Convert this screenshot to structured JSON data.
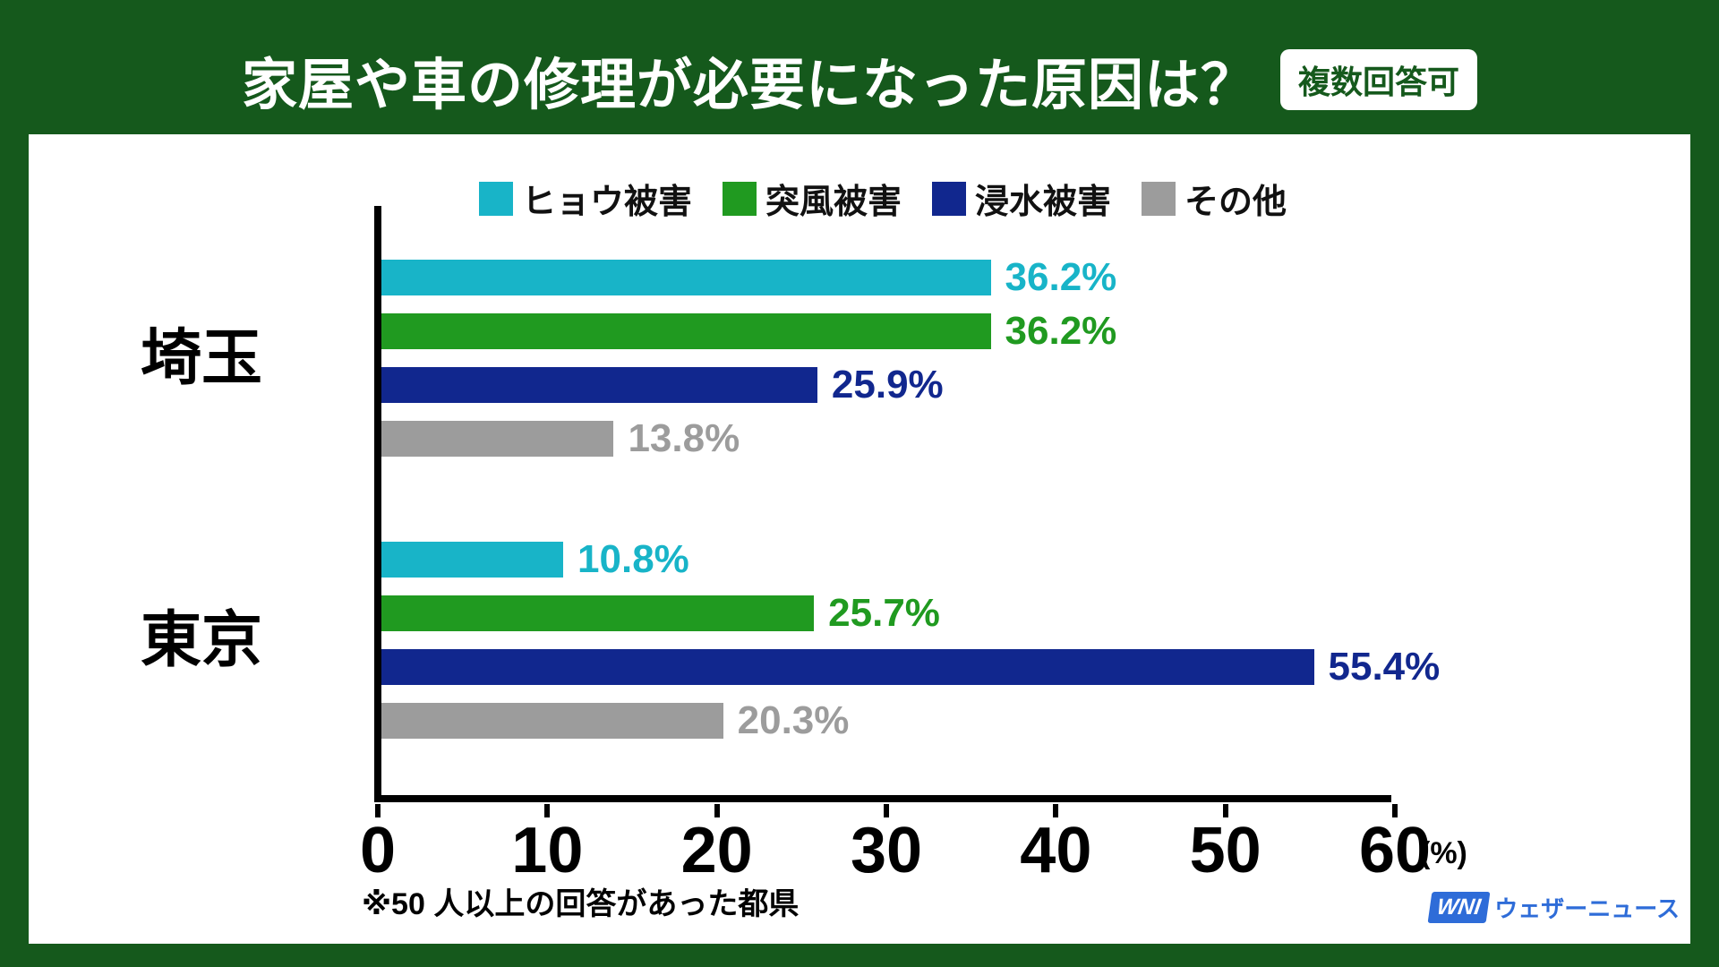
{
  "header": {
    "title": "家屋や車の修理が必要になった原因は？",
    "badge": "複数回答可"
  },
  "chart_data": {
    "type": "bar",
    "orientation": "horizontal",
    "title": "家屋や車の修理が必要になった原因は？",
    "categories": [
      "埼玉",
      "東京"
    ],
    "series": [
      {
        "name": "ヒョウ被害",
        "color": "#18b4c8",
        "values": [
          36.2,
          10.8
        ]
      },
      {
        "name": "突風被害",
        "color": "#209a20",
        "values": [
          36.2,
          25.7
        ]
      },
      {
        "name": "浸水被害",
        "color": "#11278e",
        "values": [
          25.9,
          55.4
        ]
      },
      {
        "name": "その他",
        "color": "#9c9c9c",
        "values": [
          13.8,
          20.3
        ]
      }
    ],
    "xlim": [
      0,
      60
    ],
    "xticks": [
      0,
      10,
      20,
      30,
      40,
      50,
      60
    ],
    "x_unit": "(%)",
    "value_suffix": "%",
    "legend_position": "top",
    "grid": false
  },
  "footnote": "※50 人以上の回答があった都県",
  "logo": {
    "mark": "WNI",
    "text": "ウェザーニュース"
  },
  "colors": {
    "background": "#15591c",
    "panel": "#ffffff",
    "axis": "#000000",
    "badge_text": "#15591c",
    "logo_blue": "#2e6cd8"
  }
}
